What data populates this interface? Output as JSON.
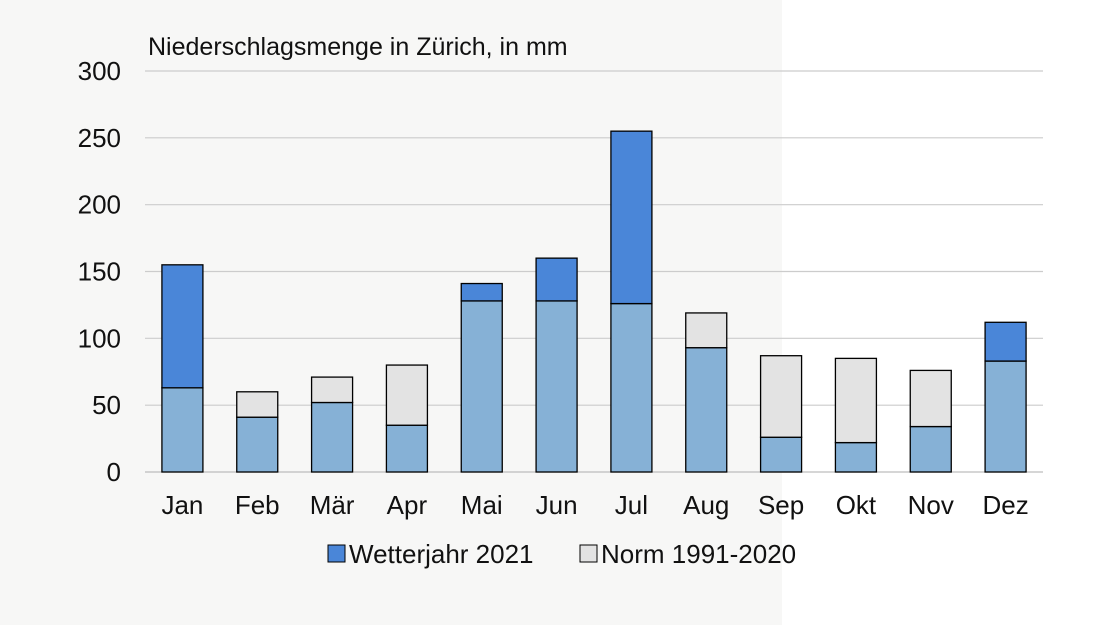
{
  "chart_data": {
    "type": "bar",
    "title": "Niederschlagsmenge in Zürich, in mm",
    "categories": [
      "Jan",
      "Feb",
      "Mär",
      "Apr",
      "Mai",
      "Jun",
      "Jul",
      "Aug",
      "Sep",
      "Okt",
      "Nov",
      "Dez"
    ],
    "series": [
      {
        "name": "Wetterjahr 2021",
        "values": [
          155,
          41,
          52,
          35,
          141,
          160,
          255,
          93,
          26,
          22,
          34,
          112
        ]
      },
      {
        "name": "Norm 1991-2020",
        "values": [
          63,
          60,
          71,
          80,
          128,
          128,
          126,
          119,
          87,
          85,
          76,
          83
        ]
      }
    ],
    "ylim": [
      0,
      300
    ],
    "yticks": [
      0,
      50,
      100,
      150,
      200,
      250,
      300
    ],
    "grid": true,
    "legend_position": "bottom",
    "colors": {
      "wetterjahr": "#4a86d8",
      "norm": "#e3e3e3",
      "overlap": "#86b1d6",
      "gridline": "#cccccc",
      "outline": "#000000"
    }
  }
}
